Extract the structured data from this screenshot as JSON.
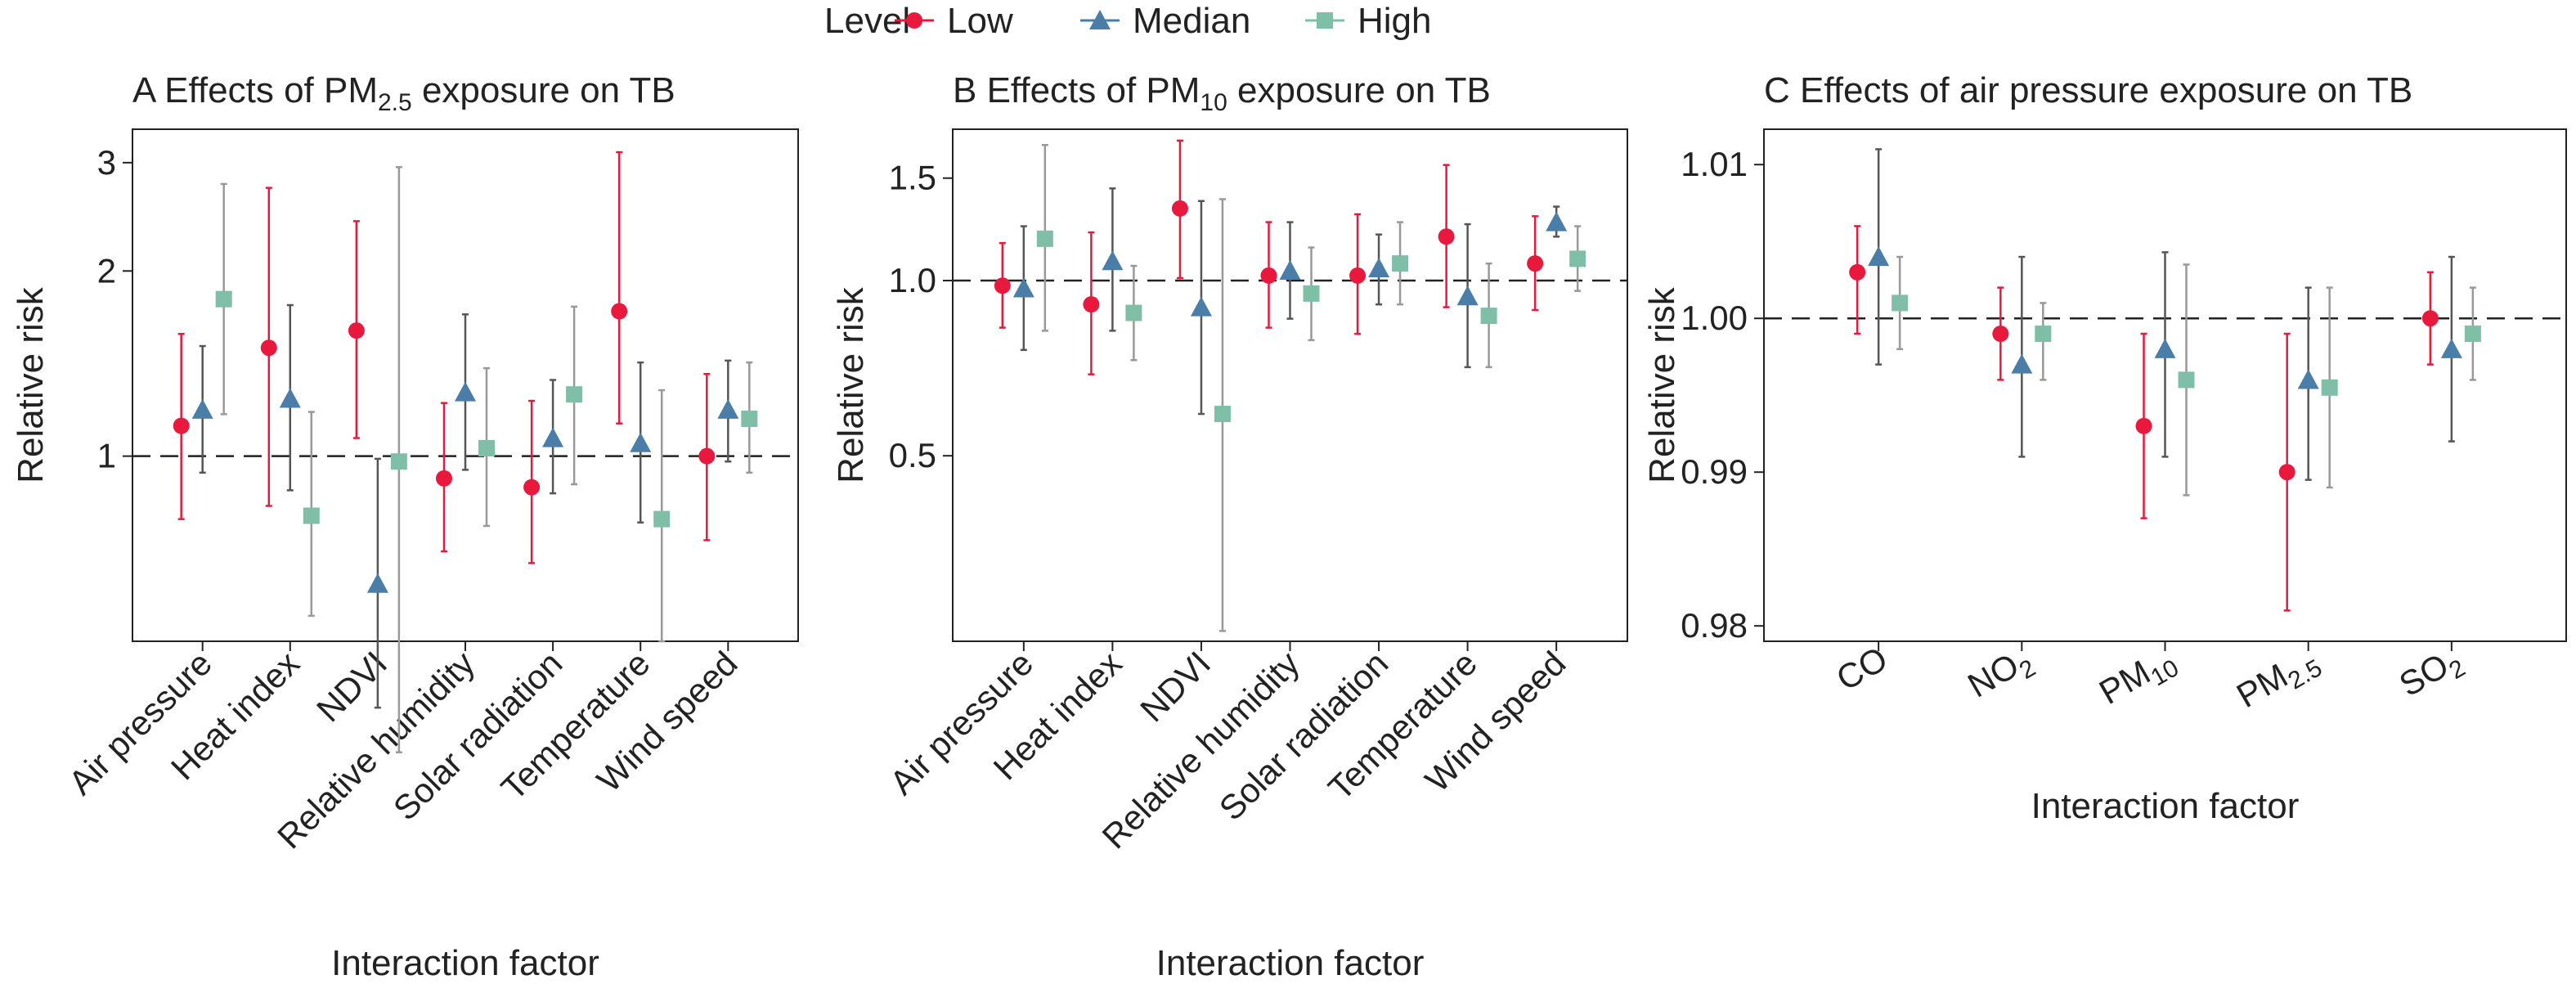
{
  "legend": {
    "title": "Level",
    "items": [
      {
        "label": "Low",
        "shape": "circle",
        "color": "#E8193C"
      },
      {
        "label": "Median",
        "shape": "triangle",
        "color": "#4A7EA8"
      },
      {
        "label": "High",
        "shape": "square",
        "color": "#7FBFA8"
      }
    ]
  },
  "colors": {
    "low": "#E8193C",
    "median": "#4A7EA8",
    "high": "#7FBFA8",
    "median_bar": "#555555",
    "high_bar": "#999999",
    "reference_line": "#222222"
  },
  "chart_data": [
    {
      "panel": "A",
      "type": "scatter",
      "title_prefix": "A  Effects of PM",
      "title_sub": "2.5",
      "title_suffix": " exposure on TB",
      "xlabel": "Interaction factor",
      "ylabel": "Relative risk",
      "scale": "log",
      "ylim": [
        0.5,
        3.4
      ],
      "yticks": [
        1,
        2,
        3
      ],
      "ytick_labels": [
        "1",
        "2",
        "3"
      ],
      "reference": 1,
      "grid": false,
      "categories": [
        {
          "main": "Air pressure",
          "sub": ""
        },
        {
          "main": "Heat index",
          "sub": ""
        },
        {
          "main": "NDVI",
          "sub": ""
        },
        {
          "main": "Relative humidity",
          "sub": ""
        },
        {
          "main": "Solar radiation",
          "sub": ""
        },
        {
          "main": "Temperature",
          "sub": ""
        },
        {
          "main": "Wind speed",
          "sub": ""
        }
      ],
      "series": [
        {
          "name": "Low",
          "values": [
            1.12,
            1.5,
            1.6,
            0.92,
            0.89,
            1.72,
            1.0
          ],
          "lower": [
            0.79,
            0.83,
            1.07,
            0.7,
            0.67,
            1.13,
            0.73
          ],
          "upper": [
            1.58,
            2.73,
            2.41,
            1.22,
            1.23,
            3.12,
            1.36
          ]
        },
        {
          "name": "Median",
          "values": [
            1.19,
            1.24,
            0.62,
            1.27,
            1.07,
            1.05,
            1.19
          ],
          "lower": [
            0.94,
            0.88,
            0.39,
            0.95,
            0.87,
            0.78,
            0.98
          ],
          "upper": [
            1.51,
            1.76,
            0.99,
            1.7,
            1.33,
            1.42,
            1.43
          ]
        },
        {
          "name": "High",
          "values": [
            1.8,
            0.8,
            0.98,
            1.03,
            1.26,
            0.79,
            1.15
          ],
          "lower": [
            1.17,
            0.55,
            0.33,
            0.77,
            0.9,
            0.5,
            0.94
          ],
          "upper": [
            2.77,
            1.18,
            2.95,
            1.39,
            1.75,
            1.28,
            1.42
          ]
        }
      ]
    },
    {
      "panel": "B",
      "type": "scatter",
      "title_prefix": "B  Effects of PM",
      "title_sub": "10",
      "title_suffix": " exposure on TB",
      "xlabel": "Interaction factor",
      "ylabel": "Relative risk",
      "scale": "log",
      "ylim": [
        0.24,
        1.82
      ],
      "yticks": [
        0.5,
        1.0,
        1.5
      ],
      "ytick_labels": [
        "0.5",
        "1.0",
        "1.5"
      ],
      "reference": 1,
      "grid": false,
      "categories": [
        {
          "main": "Air pressure",
          "sub": ""
        },
        {
          "main": "Heat index",
          "sub": ""
        },
        {
          "main": "NDVI",
          "sub": ""
        },
        {
          "main": "Relative humidity",
          "sub": ""
        },
        {
          "main": "Solar radiation",
          "sub": ""
        },
        {
          "main": "Temperature",
          "sub": ""
        },
        {
          "main": "Wind speed",
          "sub": ""
        }
      ],
      "series": [
        {
          "name": "Low",
          "values": [
            0.98,
            0.91,
            1.33,
            1.02,
            1.02,
            1.19,
            1.07
          ],
          "lower": [
            0.83,
            0.69,
            1.01,
            0.83,
            0.81,
            0.9,
            0.89
          ],
          "upper": [
            1.16,
            1.21,
            1.74,
            1.26,
            1.3,
            1.58,
            1.29
          ]
        },
        {
          "name": "Median",
          "values": [
            0.97,
            1.08,
            0.9,
            1.04,
            1.05,
            0.94,
            1.26
          ],
          "lower": [
            0.76,
            0.82,
            0.59,
            0.86,
            0.91,
            0.71,
            1.19
          ],
          "upper": [
            1.24,
            1.44,
            1.37,
            1.26,
            1.2,
            1.25,
            1.34
          ]
        },
        {
          "name": "High",
          "values": [
            1.18,
            0.88,
            0.59,
            0.95,
            1.07,
            0.87,
            1.09
          ],
          "lower": [
            0.82,
            0.73,
            0.25,
            0.79,
            0.91,
            0.71,
            0.96
          ],
          "upper": [
            1.71,
            1.06,
            1.38,
            1.14,
            1.26,
            1.07,
            1.24
          ]
        }
      ]
    },
    {
      "panel": "C",
      "type": "scatter",
      "title_prefix": "C  Effects of air pressure exposure on TB",
      "title_sub": "",
      "title_suffix": "",
      "xlabel": "Interaction factor",
      "ylabel": "Relative risk",
      "scale": "linear",
      "ylim": [
        0.979,
        1.0123
      ],
      "yticks": [
        0.98,
        0.99,
        1.0,
        1.01
      ],
      "ytick_labels": [
        "0.98",
        "0.99",
        "1.00",
        "1.01"
      ],
      "reference": 1,
      "grid": false,
      "categories": [
        {
          "main": "CO",
          "sub": ""
        },
        {
          "main": "NO",
          "sub": "2"
        },
        {
          "main": "PM",
          "sub": "10"
        },
        {
          "main": "PM",
          "sub": "2.5"
        },
        {
          "main": "SO",
          "sub": "2"
        }
      ],
      "series": [
        {
          "name": "Low",
          "values": [
            1.003,
            0.999,
            0.993,
            0.99,
            1.0
          ],
          "lower": [
            0.999,
            0.996,
            0.987,
            0.981,
            0.997
          ],
          "upper": [
            1.006,
            1.002,
            0.999,
            0.999,
            1.003
          ]
        },
        {
          "name": "Median",
          "values": [
            1.004,
            0.997,
            0.998,
            0.996,
            0.998
          ],
          "lower": [
            0.997,
            0.991,
            0.991,
            0.9895,
            0.992
          ],
          "upper": [
            1.011,
            1.004,
            1.0043,
            1.002,
            1.004
          ]
        },
        {
          "name": "High",
          "values": [
            1.001,
            0.999,
            0.996,
            0.9955,
            0.999
          ],
          "lower": [
            0.998,
            0.996,
            0.9885,
            0.989,
            0.996
          ],
          "upper": [
            1.004,
            1.001,
            1.0035,
            1.002,
            1.002
          ]
        }
      ]
    }
  ]
}
